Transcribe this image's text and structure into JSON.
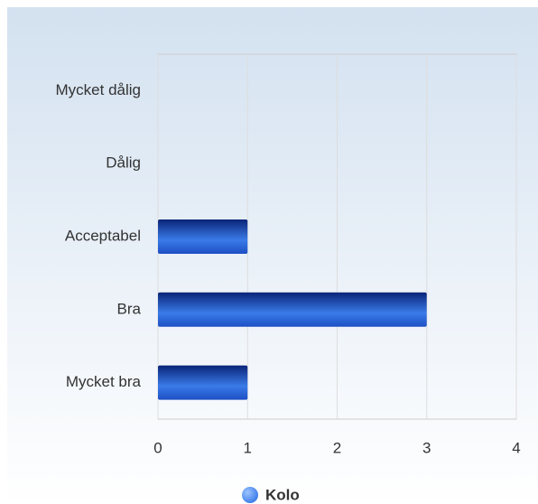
{
  "chart_data": {
    "type": "bar",
    "orientation": "horizontal",
    "categories": [
      "Mycket dålig",
      "Dålig",
      "Acceptabel",
      "Bra",
      "Mycket bra"
    ],
    "series": [
      {
        "name": "Kolo",
        "color": "#3a7be8",
        "values": [
          0,
          0,
          1,
          3,
          1
        ]
      }
    ],
    "xlim": [
      0,
      4
    ],
    "xticks": [
      0,
      1,
      2,
      3,
      4
    ],
    "grid": true,
    "legend": "bottom"
  }
}
